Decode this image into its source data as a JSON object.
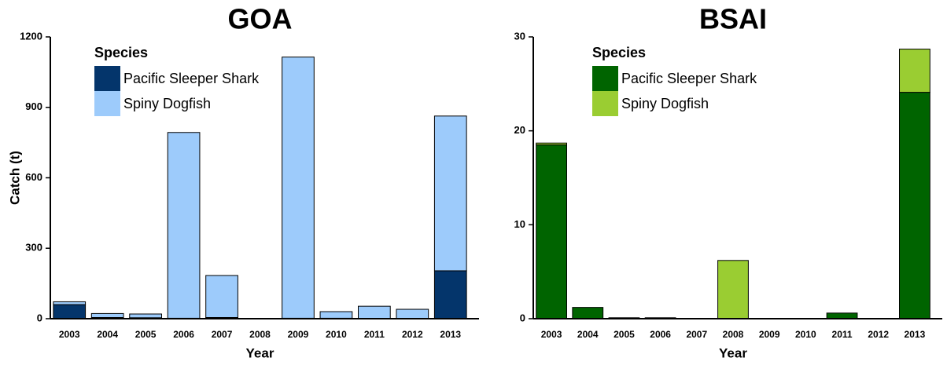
{
  "chart_data": [
    {
      "type": "bar",
      "stacked": true,
      "title": "GOA",
      "x_label": "Year",
      "y_label": "Catch (t)",
      "legend_title": "Species",
      "categories": [
        "2003",
        "2004",
        "2005",
        "2006",
        "2007",
        "2008",
        "2009",
        "2010",
        "2011",
        "2012",
        "2013"
      ],
      "series": [
        {
          "name": "Pacific Sleeper Shark",
          "color": "#04356b",
          "values": [
            60,
            5,
            4,
            2,
            5,
            0,
            2,
            2,
            1,
            1,
            204
          ]
        },
        {
          "name": "Spiny Dogfish",
          "color": "#9dcbfb",
          "values": [
            12,
            17,
            16,
            791,
            179,
            0,
            1112,
            28,
            52,
            39,
            659
          ]
        }
      ],
      "ylim": [
        0,
        1200
      ],
      "yticks": [
        0,
        300,
        600,
        900,
        1200
      ]
    },
    {
      "type": "bar",
      "stacked": true,
      "title": "BSAI",
      "x_label": "Year",
      "legend_title": "Species",
      "categories": [
        "2003",
        "2004",
        "2005",
        "2006",
        "2007",
        "2008",
        "2009",
        "2010",
        "2011",
        "2012",
        "2013"
      ],
      "series": [
        {
          "name": "Pacific Sleeper Shark",
          "color": "#006400",
          "values": [
            18.5,
            1.2,
            0.1,
            0.1,
            0,
            0,
            0,
            0,
            0.6,
            0,
            24.1
          ]
        },
        {
          "name": "Spiny Dogfish",
          "color": "#9acd32",
          "values": [
            0.2,
            0,
            0,
            0,
            0,
            6.2,
            0,
            0,
            0,
            0,
            4.6
          ]
        }
      ],
      "ylim": [
        0,
        30
      ],
      "yticks": [
        0,
        10,
        20,
        30
      ]
    }
  ]
}
